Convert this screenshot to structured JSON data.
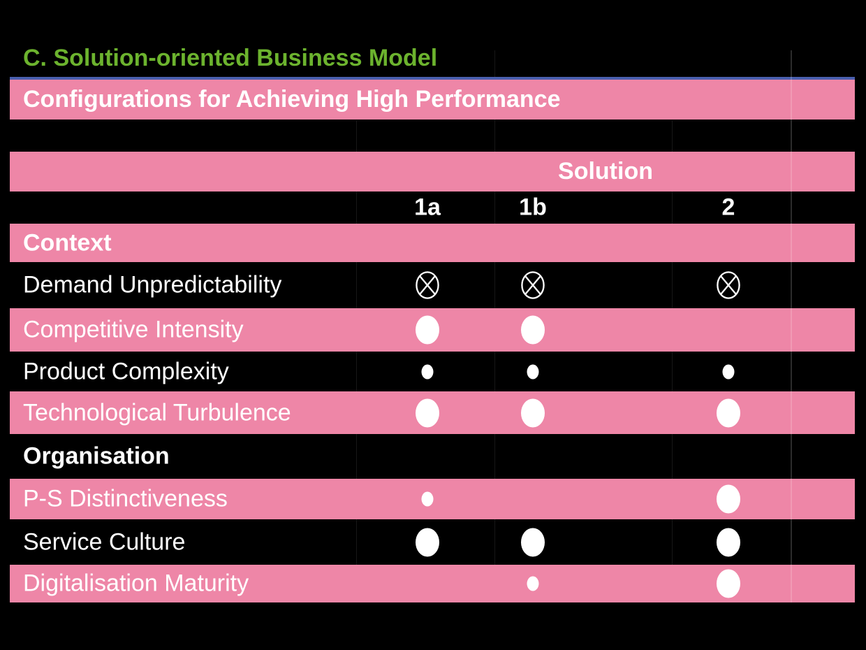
{
  "slide": {
    "title": "C. Solution-oriented Business Model",
    "subtitle": "Configurations for Achieving High Performance"
  },
  "chart_data": {
    "type": "table",
    "title": "Configurations for Achieving High Performance",
    "column_group_header": "Solution",
    "columns": [
      "1a",
      "1b",
      "2"
    ],
    "symbol_legend": {
      "crossed-circle": "outlined circle with X mark",
      "large-dot": "large filled white circle",
      "small-dot": "small filled white circle",
      "": "no mark"
    },
    "rows": [
      {
        "label": "Context",
        "type": "section",
        "cells": [
          "",
          "",
          ""
        ]
      },
      {
        "label": "Demand Unpredictability",
        "type": "item",
        "cells": [
          "crossed-circle",
          "crossed-circle",
          "crossed-circle"
        ]
      },
      {
        "label": "Competitive Intensity",
        "type": "item",
        "cells": [
          "large-dot",
          "large-dot",
          ""
        ]
      },
      {
        "label": "Product Complexity",
        "type": "item",
        "cells": [
          "small-dot",
          "small-dot",
          "small-dot"
        ]
      },
      {
        "label": "Technological Turbulence",
        "type": "item",
        "cells": [
          "large-dot",
          "large-dot",
          "large-dot"
        ]
      },
      {
        "label": "Organisation",
        "type": "section",
        "cells": [
          "",
          "",
          ""
        ]
      },
      {
        "label": "P-S Distinctiveness",
        "type": "item",
        "cells": [
          "small-dot",
          "",
          "large-dot"
        ]
      },
      {
        "label": "Service Culture",
        "type": "item",
        "cells": [
          "large-dot",
          "large-dot",
          "large-dot"
        ]
      },
      {
        "label": "Digitalisation Maturity",
        "type": "item",
        "cells": [
          "",
          "small-dot",
          "large-dot"
        ]
      }
    ]
  },
  "colors": {
    "background": "#000000",
    "pink": "#ee86a7",
    "green": "#6cb32e",
    "blue_line": "#4a5fae",
    "text": "#ffffff"
  }
}
